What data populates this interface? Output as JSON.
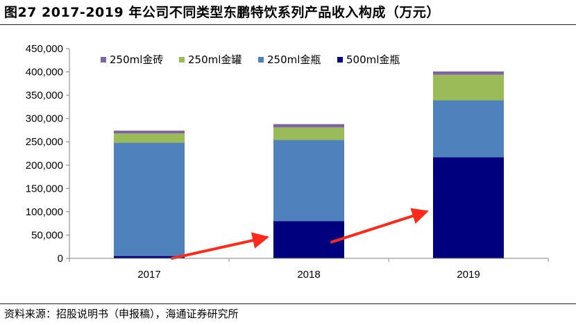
{
  "header": {
    "title": "图27 2017-2019 年公司不同类型东鹏特饮系列产品收入构成（万元）"
  },
  "footer": {
    "source": "资料来源：招股说明书（申报稿），海通证券研究所"
  },
  "colors": {
    "500ml金瓶": "#00007f",
    "250ml金瓶": "#4f81bd",
    "250ml金罐": "#9bbb59",
    "250ml金砖": "#8064a2",
    "arrow": "#ff2a1a",
    "axis": "#808080"
  },
  "chart_data": {
    "type": "bar",
    "stacked": true,
    "title": "",
    "xlabel": "",
    "ylabel": "",
    "categories": [
      "2017",
      "2018",
      "2019"
    ],
    "ylim": [
      0,
      450000
    ],
    "yticks": [
      0,
      50000,
      100000,
      150000,
      200000,
      250000,
      300000,
      350000,
      400000,
      450000
    ],
    "ytick_labels": [
      "0",
      "50,000",
      "100,000",
      "150,000",
      "200,000",
      "250,000",
      "300,000",
      "350,000",
      "400,000",
      "450,000"
    ],
    "grid": false,
    "legend_position": "top",
    "legend_order": [
      "250ml金砖",
      "250ml金罐",
      "250ml金瓶",
      "500ml金瓶"
    ],
    "series": [
      {
        "name": "500ml金瓶",
        "values": [
          5000,
          80000,
          217000
        ]
      },
      {
        "name": "250ml金瓶",
        "values": [
          243000,
          174000,
          122000
        ]
      },
      {
        "name": "250ml金罐",
        "values": [
          20000,
          27000,
          55000
        ]
      },
      {
        "name": "250ml金砖",
        "values": [
          6000,
          7000,
          7000
        ]
      }
    ],
    "annotations": [
      {
        "type": "arrow",
        "from": [
          "2017",
          0
        ],
        "to": [
          "2018",
          45000
        ]
      },
      {
        "type": "arrow",
        "from": [
          "2018",
          35000
        ],
        "to": [
          "2019",
          100000
        ]
      }
    ]
  }
}
